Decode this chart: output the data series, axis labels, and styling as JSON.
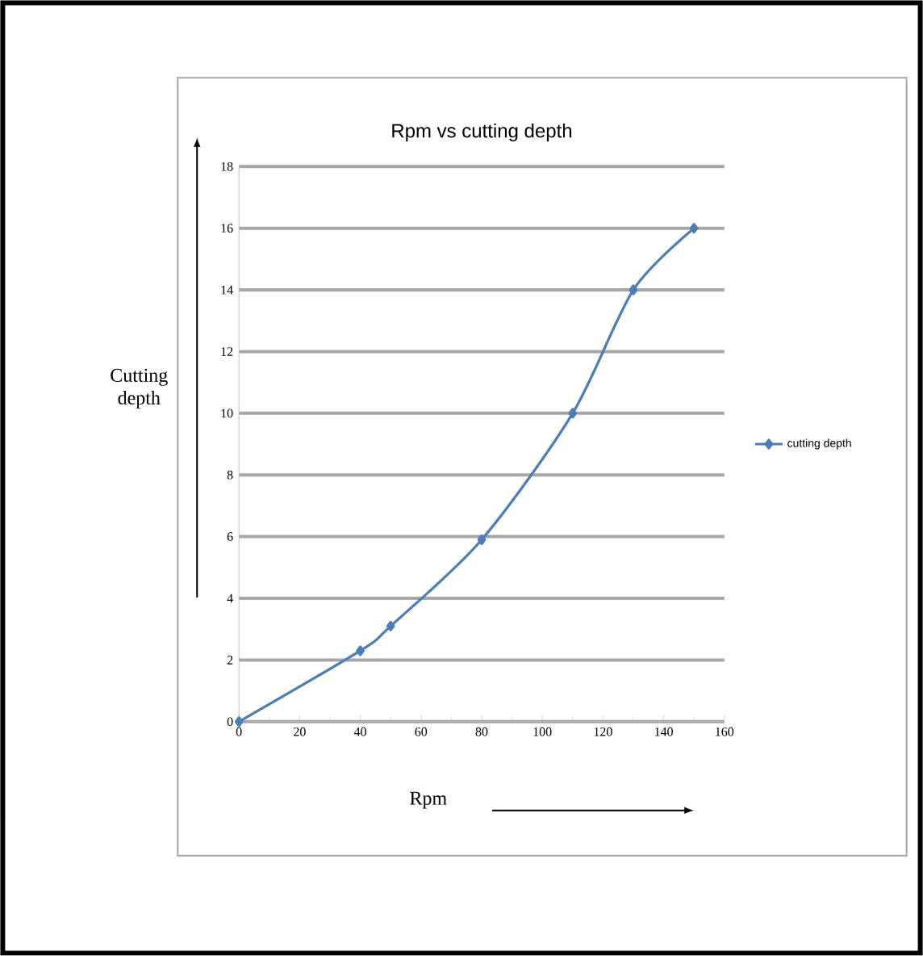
{
  "chart_data": {
    "type": "line",
    "title": "Rpm vs cutting depth",
    "xlabel": "Rpm",
    "ylabel": "Cutting depth",
    "x": [
      0,
      40,
      50,
      80,
      110,
      130,
      150
    ],
    "series": [
      {
        "name": "cutting depth",
        "color": "#4a7ebb",
        "values": [
          0,
          2.3,
          3.1,
          5.9,
          10,
          14,
          16
        ]
      }
    ],
    "xlim": [
      0,
      160
    ],
    "xticks": [
      0,
      20,
      40,
      60,
      80,
      100,
      120,
      140,
      160
    ],
    "ylim": [
      0,
      18
    ],
    "yticks": [
      0,
      2,
      4,
      6,
      8,
      10,
      12,
      14,
      16,
      18
    ],
    "grid": "y",
    "legend": "right",
    "marker": "diamond",
    "line_style": "solid"
  }
}
